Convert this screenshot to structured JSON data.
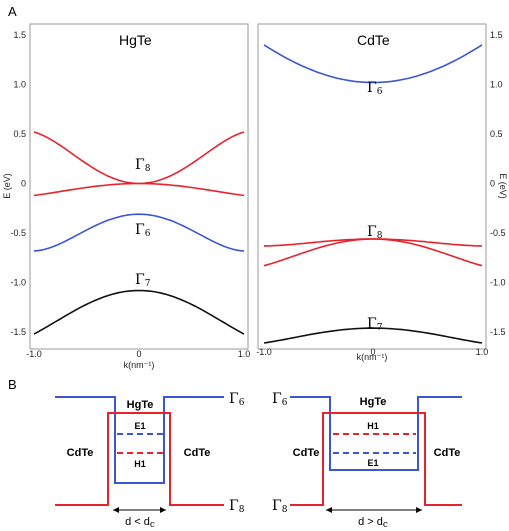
{
  "figure": {
    "panel_a_label": "A",
    "panel_b_label": "B"
  },
  "panel_a": {
    "left_title": "HgTe",
    "right_title": "CdTe",
    "left_ylabel": "E (eV)",
    "right_ylabel": "E (eV)",
    "xlabel": "k(nm⁻¹)",
    "y_ticks": [
      "1.5",
      "1.0",
      "0.5",
      "0",
      "-0.5",
      "-1.0",
      "-1.5"
    ],
    "x_ticks": [
      "-1.0",
      "0",
      "1.0"
    ],
    "left_band_labels": [
      {
        "symbol": "Γ",
        "sub": "8"
      },
      {
        "symbol": "Γ",
        "sub": "6"
      },
      {
        "symbol": "Γ",
        "sub": "7"
      }
    ],
    "right_band_labels": [
      {
        "symbol": "Γ",
        "sub": "6"
      },
      {
        "symbol": "Γ",
        "sub": "8"
      },
      {
        "symbol": "Γ",
        "sub": "7"
      }
    ]
  },
  "panel_b": {
    "left": {
      "well": "HgTe",
      "barrier_left": "CdTe",
      "barrier_right": "CdTe",
      "upper_level": "E1",
      "lower_level": "H1",
      "top_band": {
        "symbol": "Γ",
        "sub": "6"
      },
      "bottom_band": {
        "symbol": "Γ",
        "sub": "8"
      },
      "width_label": "d < d",
      "width_sub": "c"
    },
    "right": {
      "well": "HgTe",
      "barrier_left": "CdTe",
      "barrier_right": "CdTe",
      "upper_level": "H1",
      "lower_level": "E1",
      "top_band": {
        "symbol": "Γ",
        "sub": "6"
      },
      "bottom_band": {
        "symbol": "Γ",
        "sub": "8"
      },
      "width_label": "d > d",
      "width_sub": "c"
    }
  },
  "colors": {
    "red": "#e8222b",
    "blue": "#3a56d4",
    "black": "#111111",
    "frame": "#9a9a9a"
  },
  "chart_data": [
    {
      "type": "line",
      "title": "HgTe",
      "xlabel": "k(nm⁻¹)",
      "ylabel": "E (eV)",
      "xlim": [
        -1.0,
        1.0
      ],
      "ylim": [
        -1.6,
        1.55
      ],
      "x": [
        -1.0,
        -0.5,
        0.0,
        0.5,
        1.0
      ],
      "series": [
        {
          "label": "Γ8",
          "color": "#e8222b",
          "values": [
            0.52,
            0.2,
            0.0,
            0.2,
            0.52
          ]
        },
        {
          "label": "Γ8",
          "color": "#e8222b",
          "values": [
            -0.12,
            -0.04,
            0.0,
            -0.04,
            -0.12
          ]
        },
        {
          "label": "Γ6",
          "color": "#3a56d4",
          "values": [
            -0.68,
            -0.47,
            -0.31,
            -0.47,
            -0.68
          ]
        },
        {
          "label": "Γ7",
          "color": "#111111",
          "values": [
            -1.52,
            -1.22,
            -1.08,
            -1.22,
            -1.52
          ]
        }
      ]
    },
    {
      "type": "line",
      "title": "CdTe",
      "xlabel": "k(nm⁻¹)",
      "ylabel": "E (eV)",
      "xlim": [
        -1.0,
        1.0
      ],
      "ylim": [
        -1.6,
        1.55
      ],
      "x": [
        -1.0,
        -0.5,
        0.0,
        0.5,
        1.0
      ],
      "series": [
        {
          "label": "Γ6",
          "color": "#3a56d4",
          "values": [
            1.4,
            1.12,
            1.02,
            1.12,
            1.4
          ]
        },
        {
          "label": "Γ8",
          "color": "#e8222b",
          "values": [
            -0.63,
            -0.59,
            -0.56,
            -0.59,
            -0.63
          ]
        },
        {
          "label": "Γ8",
          "color": "#e8222b",
          "values": [
            -0.83,
            -0.65,
            -0.56,
            -0.65,
            -0.83
          ]
        },
        {
          "label": "Γ7",
          "color": "#111111",
          "values": [
            -1.61,
            -1.51,
            -1.46,
            -1.51,
            -1.61
          ]
        }
      ]
    }
  ]
}
